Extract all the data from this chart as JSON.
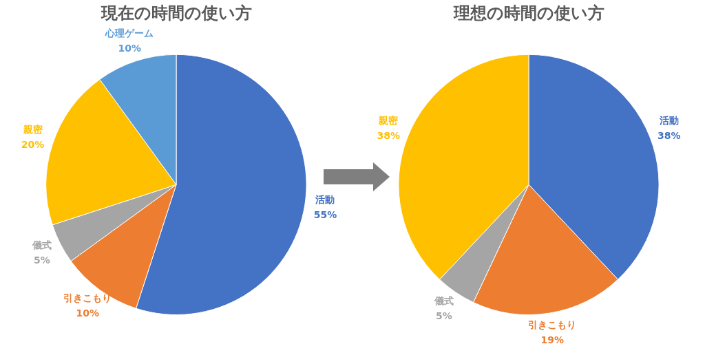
{
  "chart_data": [
    {
      "type": "pie",
      "title": "現在の時間の使い方",
      "categories": [
        "活動",
        "引きこもり",
        "儀式",
        "親密",
        "心理ゲーム"
      ],
      "values": [
        55,
        10,
        5,
        20,
        10
      ],
      "colors": [
        "#4472c4",
        "#ed7d31",
        "#a5a5a5",
        "#ffc000",
        "#5b9bd5"
      ],
      "value_labels": [
        "55%",
        "10%",
        "5%",
        "20%",
        "10%"
      ],
      "legend": false
    },
    {
      "type": "pie",
      "title": "理想の時間の使い方",
      "categories": [
        "活動",
        "引きこもり",
        "儀式",
        "親密"
      ],
      "values": [
        38,
        19,
        5,
        38
      ],
      "colors": [
        "#4472c4",
        "#ed7d31",
        "#a5a5a5",
        "#ffc000"
      ],
      "value_labels": [
        "38%",
        "19%",
        "5%",
        "38%"
      ],
      "legend": false
    }
  ]
}
